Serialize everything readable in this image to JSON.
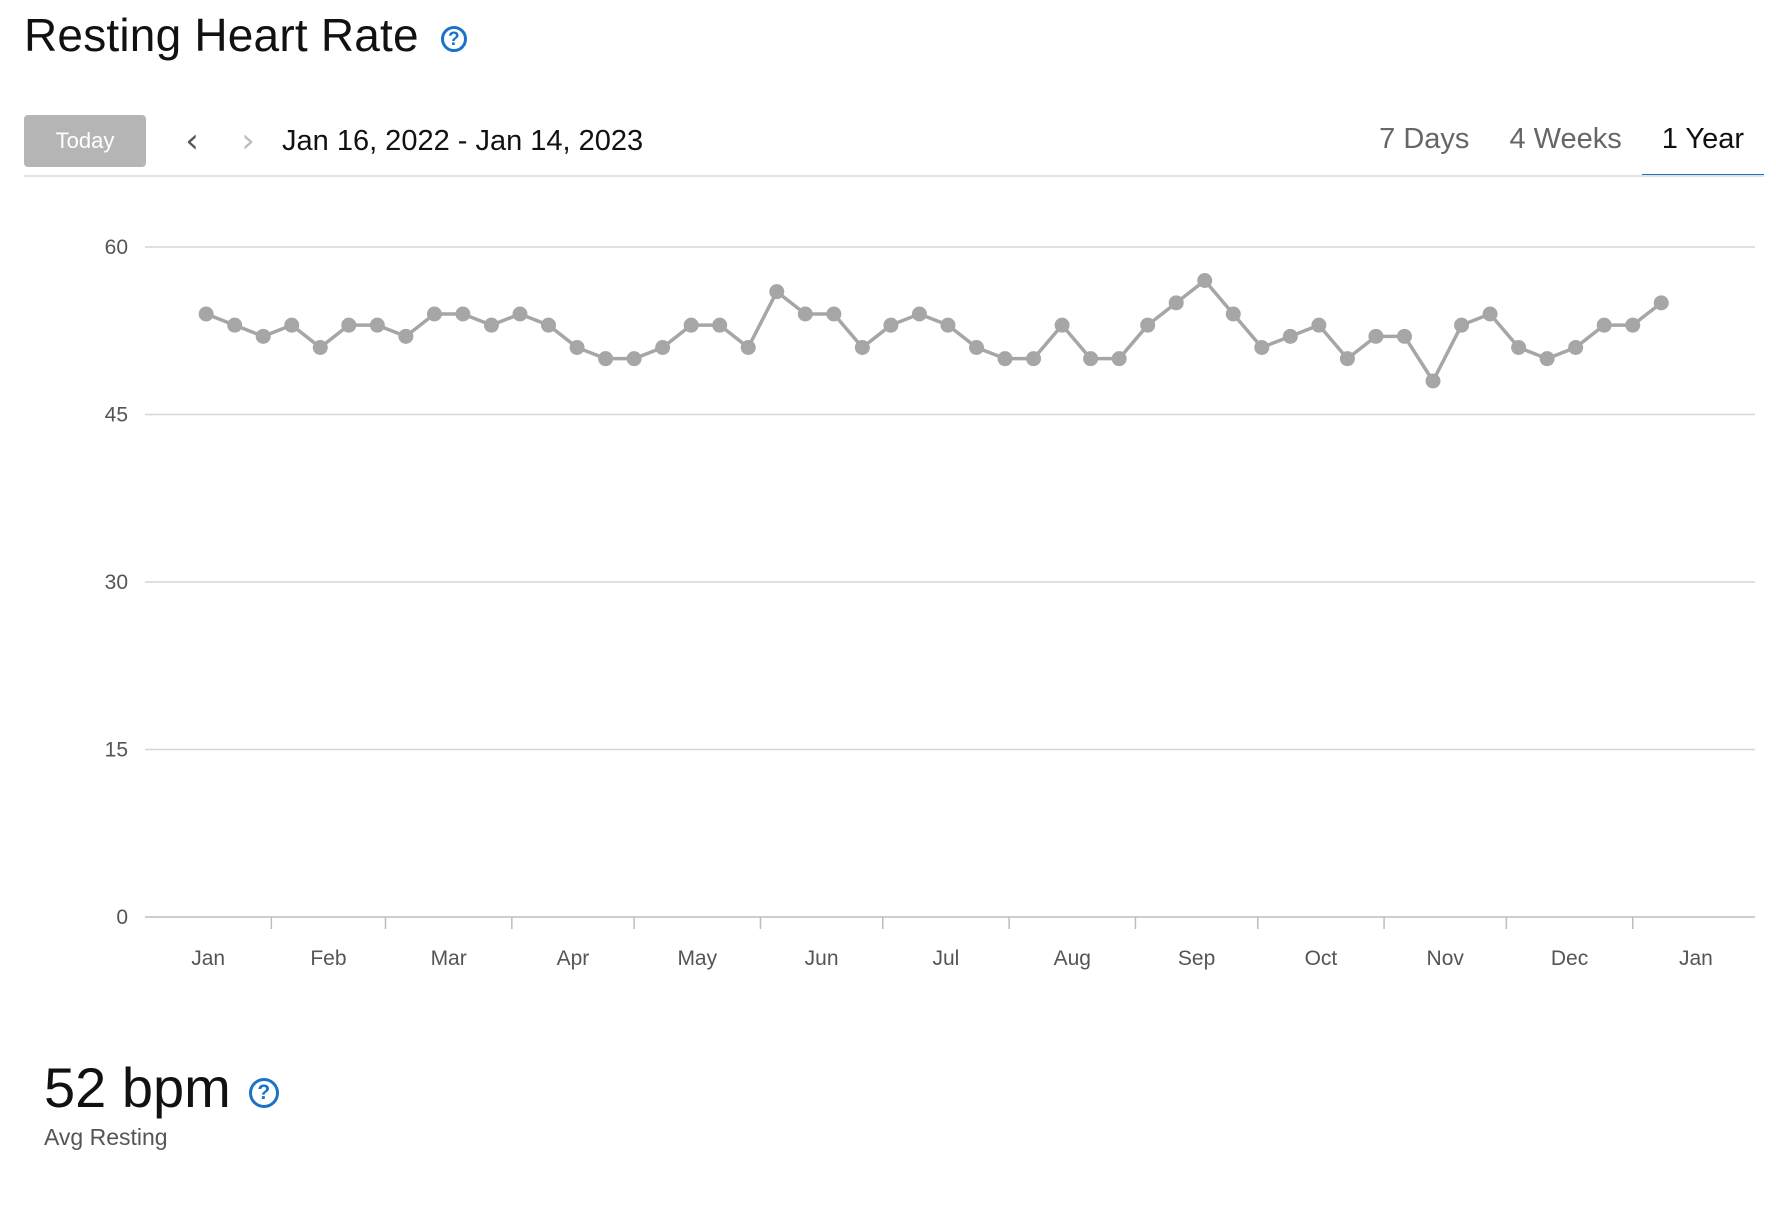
{
  "header": {
    "title": "Resting Heart Rate",
    "help_icon": "question-circle-icon"
  },
  "toolbar": {
    "today_label": "Today",
    "prev_icon": "chevron-left-icon",
    "next_icon": "chevron-right-icon",
    "date_range": "Jan 16, 2022 - Jan 14, 2023",
    "tabs": [
      {
        "label": "7 Days",
        "active": false
      },
      {
        "label": "4 Weeks",
        "active": false
      },
      {
        "label": "1 Year",
        "active": true
      }
    ]
  },
  "colors": {
    "accent": "#1a73c8",
    "series": "#a6a6a6",
    "grid": "#d6d6d6"
  },
  "chart_data": {
    "type": "line",
    "title": "",
    "xlabel": "",
    "ylabel": "",
    "ylim": [
      0,
      60
    ],
    "yticks": [
      0,
      15,
      30,
      45,
      60
    ],
    "grid": true,
    "xlim": [
      "2022-01-01",
      "2023-01-31"
    ],
    "month_ticks": [
      "Jan",
      "Feb",
      "Mar",
      "Apr",
      "May",
      "Jun",
      "Jul",
      "Aug",
      "Sep",
      "Oct",
      "Nov",
      "Dec",
      "Jan"
    ],
    "series": [
      {
        "x": [
          "2022-01-16",
          "2022-01-23",
          "2022-01-30",
          "2022-02-06",
          "2022-02-13",
          "2022-02-20",
          "2022-02-27",
          "2022-03-06",
          "2022-03-13",
          "2022-03-20",
          "2022-03-27",
          "2022-04-03",
          "2022-04-10",
          "2022-04-17",
          "2022-04-24",
          "2022-05-01",
          "2022-05-08",
          "2022-05-15",
          "2022-05-22",
          "2022-05-29",
          "2022-06-05",
          "2022-06-12",
          "2022-06-19",
          "2022-06-26",
          "2022-07-03",
          "2022-07-10",
          "2022-07-17",
          "2022-07-24",
          "2022-07-31",
          "2022-08-07",
          "2022-08-14",
          "2022-08-21",
          "2022-08-28",
          "2022-09-04",
          "2022-09-11",
          "2022-09-18",
          "2022-09-25",
          "2022-10-02",
          "2022-10-09",
          "2022-10-16",
          "2022-10-23",
          "2022-10-30",
          "2022-11-06",
          "2022-11-13",
          "2022-11-20",
          "2022-11-27",
          "2022-12-04",
          "2022-12-11",
          "2022-12-18",
          "2022-12-25",
          "2023-01-01",
          "2023-01-08"
        ],
        "values": [
          54,
          53,
          52,
          53,
          51,
          53,
          53,
          52,
          54,
          54,
          53,
          54,
          53,
          51,
          50,
          50,
          51,
          53,
          53,
          51,
          56,
          54,
          54,
          51,
          53,
          54,
          53,
          51,
          50,
          50,
          53,
          50,
          50,
          53,
          55,
          57,
          54,
          51,
          52,
          53,
          50,
          52,
          52,
          48,
          53,
          54,
          51,
          50,
          51,
          53,
          53,
          55
        ]
      }
    ]
  },
  "summary": {
    "value": "52 bpm",
    "label": "Avg Resting",
    "help_icon": "question-circle-icon"
  }
}
